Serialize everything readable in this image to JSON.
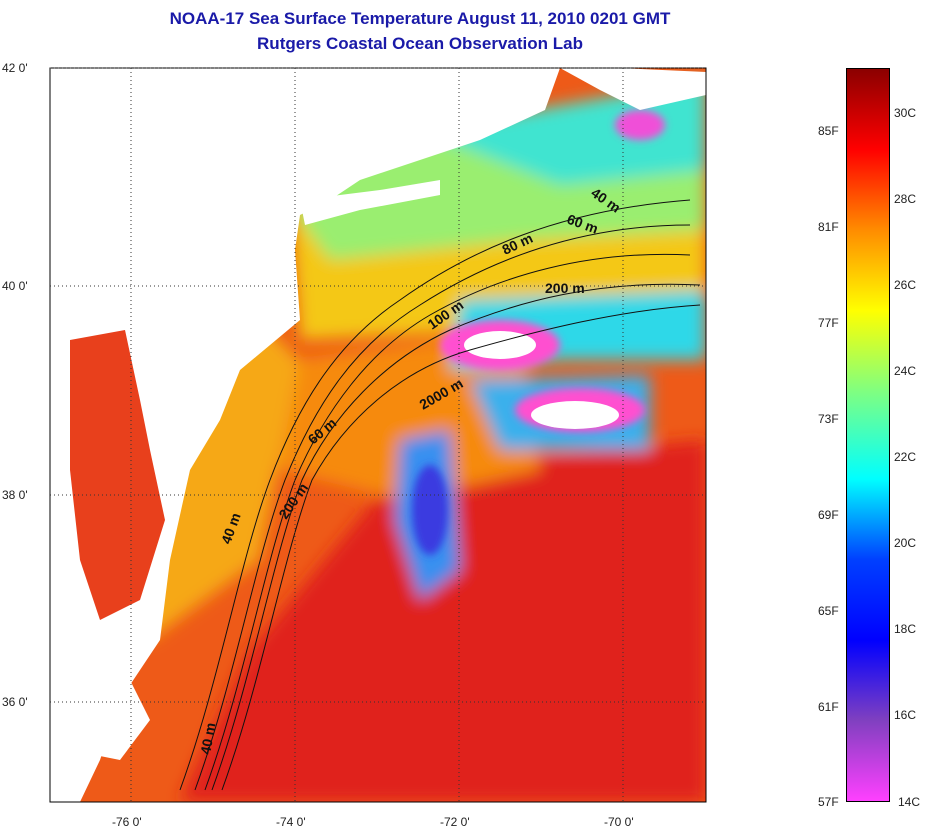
{
  "title": {
    "line1": "NOAA-17 Sea Surface Temperature August 11, 2010 0201 GMT",
    "line2": "Rutgers Coastal Ocean Observation Lab"
  },
  "map": {
    "lat_labels": [
      "42 0'",
      "40 0'",
      "38 0'",
      "36 0'"
    ],
    "lon_labels": [
      "-76 0'",
      "-74 0'",
      "-72 0'",
      "-70 0'"
    ],
    "contour_labels": [
      "40 m",
      "60 m",
      "80 m",
      "200 m",
      "100 m",
      "2000 m",
      "60 m",
      "200 m",
      "40 m",
      "40 m"
    ]
  },
  "colorbar": {
    "fahrenheit_labels": [
      "85F",
      "81F",
      "77F",
      "73F",
      "69F",
      "65F",
      "61F",
      "57F"
    ],
    "celsius_labels": [
      "30C",
      "28C",
      "26C",
      "24C",
      "22C",
      "20C",
      "18C",
      "16C",
      "14C"
    ],
    "colors": [
      "#8b0000",
      "#ff0000",
      "#ff8c00",
      "#ffff00",
      "#80ff80",
      "#00ffff",
      "#0040ff",
      "#0000ff",
      "#8040c0",
      "#ff40ff"
    ]
  },
  "palette": {
    "land": "#ffffff",
    "warm": "#ee3a10",
    "hot": "#d8211a",
    "orange": "#f8900f",
    "yellow": "#f6ee10",
    "green": "#88f08a",
    "cyan": "#2ee8e8",
    "blue": "#3040e0",
    "magenta": "#f040d8"
  }
}
